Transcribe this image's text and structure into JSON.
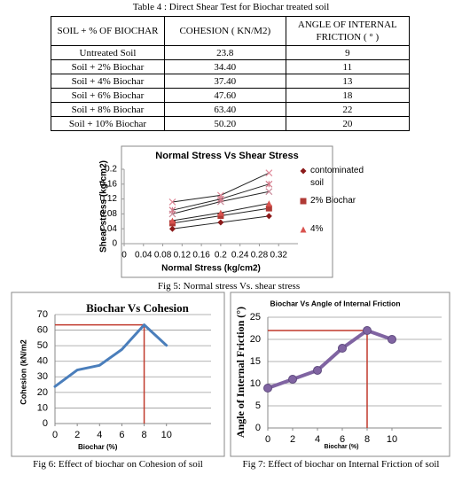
{
  "table": {
    "caption": "Table 4 : Direct Shear Test for Biochar treated soil",
    "header": [
      "SOIL + %  OF BIOCHAR",
      "COHESION ( KN/M2)",
      "ANGLE OF INTERNAL FRICTION  ( ° )"
    ],
    "rows": [
      [
        "Untreated Soil",
        "23.8",
        "9"
      ],
      [
        "Soil + 2% Biochar",
        "34.40",
        "11"
      ],
      [
        "Soil + 4% Biochar",
        "37.40",
        "13"
      ],
      [
        "Soil + 6% Biochar",
        "47.60",
        "18"
      ],
      [
        "Soil + 8% Biochar",
        "63.40",
        "22"
      ],
      [
        "Soil + 10% Biochar",
        "50.20",
        "20"
      ]
    ]
  },
  "chart_data": [
    {
      "type": "line",
      "title": "Normal Stress Vs Shear Stress",
      "x_label": "Normal Stress (kg/cm2)",
      "y_label": "Shear stress (kg/cm2)",
      "caption": "Fig 5: Normal stress Vs. shear stress",
      "x": [
        0.1,
        0.2,
        0.3
      ],
      "xlim": [
        0,
        0.36
      ],
      "xticks": [
        0,
        0.04,
        0.08,
        0.12,
        0.16,
        0.2,
        0.24,
        0.28,
        0.32
      ],
      "ylim": [
        0,
        0.2
      ],
      "yticks": [
        0,
        0.04,
        0.08,
        0.12,
        0.16,
        0.2
      ],
      "grid": false,
      "legend": "right",
      "line_color": "#222222",
      "series": [
        {
          "name": "contominated soil",
          "color": "#8b1a1a",
          "marker": "diamond",
          "values": [
            0.04,
            0.057,
            0.074
          ]
        },
        {
          "name": "2% Biochar",
          "color": "#b03a35",
          "marker": "square",
          "values": [
            0.055,
            0.075,
            0.095
          ]
        },
        {
          "name": "4%",
          "color": "#d9534f",
          "marker": "triangle",
          "values": [
            0.062,
            0.083,
            0.108
          ]
        },
        {
          "color": "#c98a9a",
          "marker": "x",
          "values": [
            0.08,
            0.113,
            0.14
          ]
        },
        {
          "color": "#d47a8a",
          "marker": "star",
          "values": [
            0.09,
            0.12,
            0.16
          ]
        },
        {
          "color": "#e08a9a",
          "marker": "x",
          "values": [
            0.112,
            0.13,
            0.19
          ]
        }
      ]
    },
    {
      "type": "line",
      "title": "Biochar  Vs Cohesion",
      "x_label": "Biochar (%)",
      "y_label": "Cohesion (kN/m2",
      "caption": "Fig 6:   Effect of  biochar on Cohesion of soil",
      "x": [
        0,
        2,
        4,
        6,
        8,
        10
      ],
      "xlim": [
        0,
        14
      ],
      "xticks": [
        0,
        2,
        4,
        6,
        8,
        10
      ],
      "ylim": [
        0,
        70
      ],
      "yticks": [
        0,
        10,
        20,
        30,
        40,
        50,
        60,
        70
      ],
      "grid": true,
      "guide_color": "#c0392b",
      "series": [
        {
          "color": "#4a7ebb",
          "values": [
            23.8,
            34.4,
            37.4,
            47.6,
            63.4,
            50.2
          ]
        }
      ]
    },
    {
      "type": "line",
      "title": "Biochar Vs Angle of Internal Friction",
      "x_label": "Biochar (%)",
      "y_label": "Angle of Internal Friction (°)",
      "caption": "Fig 7:  Effect of  biochar on Internal Friction of soil",
      "x": [
        0,
        2,
        4,
        6,
        8,
        10
      ],
      "xlim": [
        0,
        14
      ],
      "xticks": [
        0,
        2,
        4,
        6,
        8,
        10
      ],
      "ylim": [
        0,
        25
      ],
      "yticks": [
        0,
        5,
        10,
        15,
        20,
        25
      ],
      "grid": true,
      "guide_color": "#c0392b",
      "series": [
        {
          "color": "#8064a2",
          "marker": "circle",
          "values": [
            9,
            11,
            13,
            18,
            22,
            20
          ]
        }
      ]
    }
  ]
}
